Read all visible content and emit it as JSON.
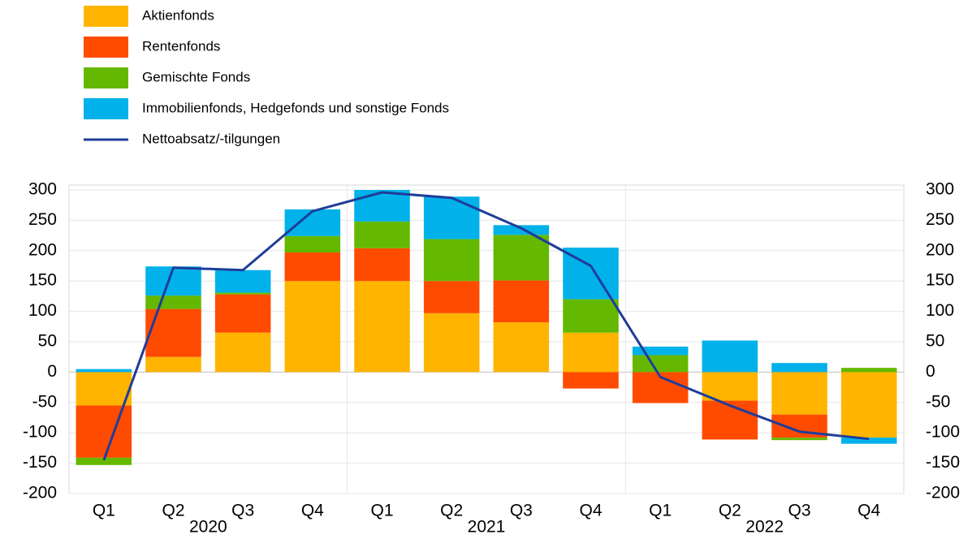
{
  "chart_data": {
    "type": "bar",
    "categories": [
      "Q1",
      "Q2",
      "Q3",
      "Q4",
      "Q1",
      "Q2",
      "Q3",
      "Q4",
      "Q1",
      "Q2",
      "Q3",
      "Q4"
    ],
    "groups": [
      "2020",
      "2021",
      "2022"
    ],
    "stacked": true,
    "series": [
      {
        "name": "Aktienfonds",
        "color": "#ffb400",
        "values": [
          -55,
          25,
          65,
          150,
          150,
          97,
          82,
          65,
          0,
          -47,
          -70,
          -108
        ]
      },
      {
        "name": "Rentenfonds",
        "color": "#ff4b00",
        "values": [
          -86,
          79,
          63,
          47,
          54,
          53,
          69,
          -27,
          -51,
          -64,
          -38,
          0
        ]
      },
      {
        "name": "Gemischte Fonds",
        "color": "#65b800",
        "values": [
          -12,
          22,
          3,
          27,
          44,
          69,
          75,
          55,
          28,
          0,
          -4,
          7
        ]
      },
      {
        "name": "Immobilienfonds, Hedgefonds und sonstige Fonds",
        "color": "#00b1ea",
        "values": [
          5,
          48,
          37,
          44,
          52,
          70,
          16,
          85,
          14,
          52,
          15,
          -10
        ]
      },
      {
        "name": "Nettoabsatz/-tilgungen",
        "type": "line",
        "color": "#1f3d99",
        "values": [
          -145,
          172,
          168,
          265,
          296,
          287,
          237,
          175,
          -8,
          -55,
          -98,
          -110
        ]
      }
    ],
    "ylim": [
      -200,
      300
    ],
    "yticks": [
      -200,
      -150,
      -100,
      -50,
      0,
      50,
      100,
      150,
      200,
      250,
      300
    ],
    "y2lim": [
      -200,
      300
    ],
    "y2ticks": [
      -200,
      -150,
      -100,
      -50,
      0,
      50,
      100,
      150,
      200,
      250,
      300
    ],
    "grid": true,
    "legend": "top-left"
  }
}
